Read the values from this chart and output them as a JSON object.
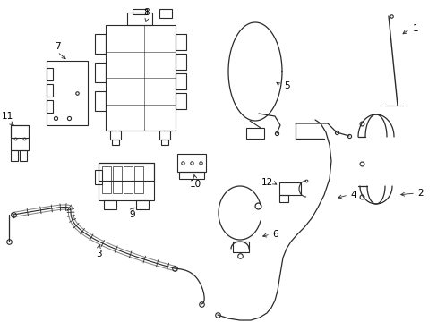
{
  "bg_color": "#ffffff",
  "line_color": "#2a2a2a",
  "text_color": "#000000",
  "fig_width": 4.89,
  "fig_height": 3.6,
  "dpi": 100
}
